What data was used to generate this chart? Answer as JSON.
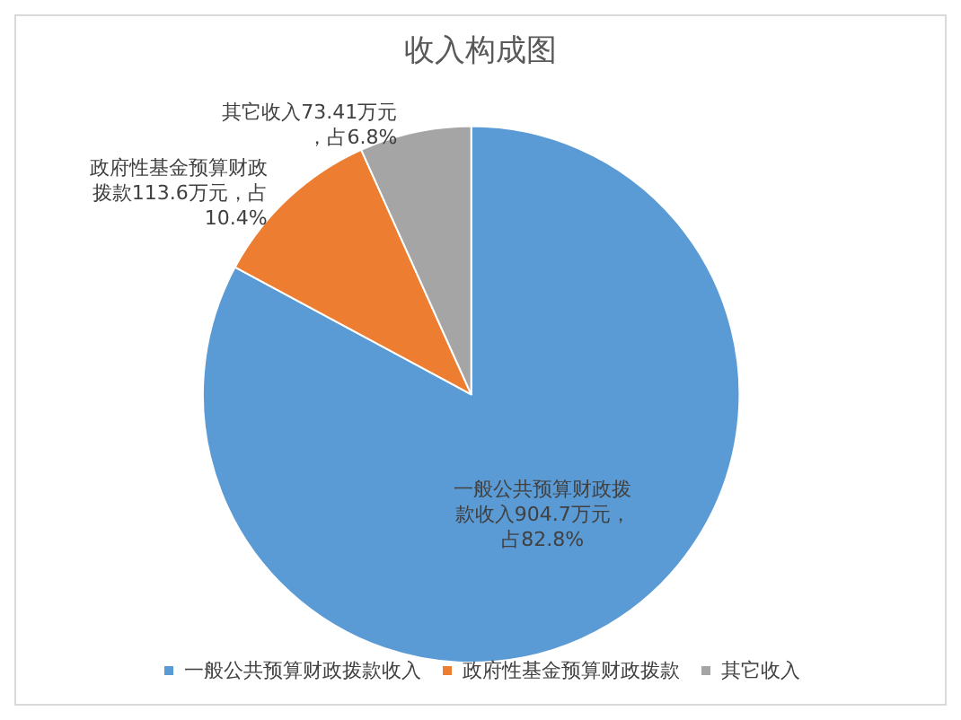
{
  "chart_data": {
    "type": "pie",
    "title": "收入构成图",
    "categories": [
      "一般公共预算财政拨款收入",
      "政府性基金预算财政拨款",
      "其它收入"
    ],
    "values": [
      904.7,
      113.6,
      73.41
    ],
    "colors": [
      "#5b9bd5",
      "#ed7d31",
      "#a5a5a5"
    ],
    "value_labels": [
      "一般公共预算财政拨款收入904.7万元，占82.8%",
      "政府性基金预算财政拨款113.6万元，占10.4%",
      "其它收入73.41万元，占6.8%"
    ],
    "legend": "bottom"
  }
}
